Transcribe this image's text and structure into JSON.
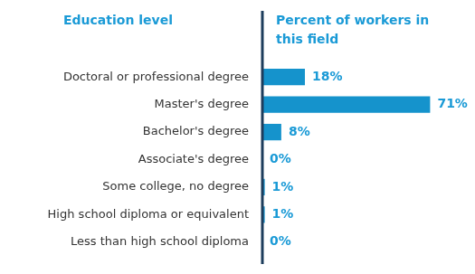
{
  "chart_data": {
    "type": "bar",
    "orientation": "horizontal",
    "y_label": "Education level",
    "x_label": "Percent of workers in this field",
    "categories": [
      "Doctoral or professional degree",
      "Master's degree",
      "Bachelor's degree",
      "Associate's degree",
      "Some college, no degree",
      "High school diploma or equivalent",
      "Less than high school diploma"
    ],
    "values": [
      18,
      71,
      8,
      0,
      1,
      1,
      0
    ],
    "value_labels": [
      "18%",
      "71%",
      "8%",
      "0%",
      "1%",
      "1%",
      "0%"
    ],
    "color": "#1593cc",
    "xlim": [
      0,
      90
    ],
    "grid": false,
    "data_labels": true,
    "tick_labels": "y"
  }
}
